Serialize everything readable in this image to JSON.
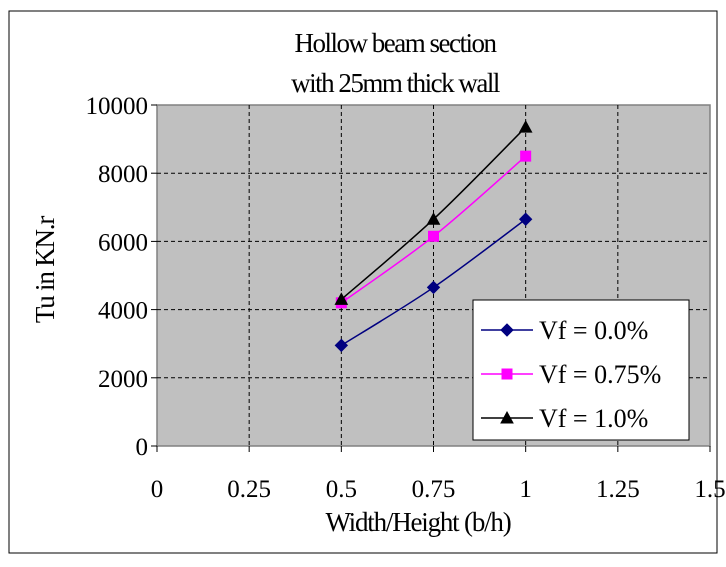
{
  "chart_data": {
    "type": "line",
    "title_lines": [
      "Hollow beam section",
      "with 25mm thick wall"
    ],
    "xlabel": "Width/Height (b/h)",
    "ylabel": "Tu in KN.r",
    "xlim": [
      0,
      1.5
    ],
    "ylim": [
      0,
      10000
    ],
    "x_ticks": [
      0,
      0.25,
      0.5,
      0.75,
      1,
      1.25,
      1.5
    ],
    "x_tick_labels": [
      "0",
      "0.25",
      "0.5",
      "0.75",
      "1",
      "1.25",
      "1.5"
    ],
    "y_ticks": [
      0,
      2000,
      4000,
      6000,
      8000,
      10000
    ],
    "y_tick_labels": [
      "0",
      "2000",
      "4000",
      "6000",
      "8000",
      "10000"
    ],
    "grid": true,
    "plot_background": "#c0c0c0",
    "legend_position": "lower-right",
    "series": [
      {
        "name": "Vf = 0.0%",
        "color": "#000080",
        "marker": "diamond",
        "x": [
          0.5,
          0.75,
          1.0
        ],
        "y": [
          2950,
          4650,
          6650
        ]
      },
      {
        "name": "Vf = 0.75%",
        "color": "#ff00ff",
        "marker": "square",
        "x": [
          0.5,
          0.75,
          1.0
        ],
        "y": [
          4200,
          6150,
          8500
        ]
      },
      {
        "name": "Vf = 1.0%",
        "color": "#000000",
        "marker": "triangle",
        "x": [
          0.5,
          0.75,
          1.0
        ],
        "y": [
          4300,
          6650,
          9350
        ]
      }
    ]
  }
}
